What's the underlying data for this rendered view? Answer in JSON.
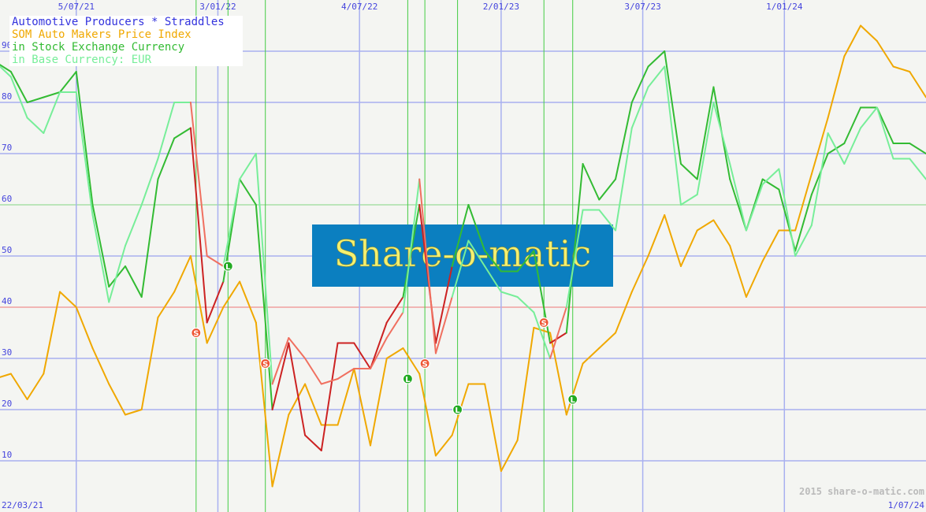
{
  "chart_data": {
    "type": "line",
    "title": "Automotive Producers * Straddles",
    "legend": [
      {
        "text": "Automotive Producers * Straddles",
        "color": "#3333dd"
      },
      {
        "text": "SOM Auto Makers Price Index",
        "color": "#f0a800"
      },
      {
        "text": "in Stock Exchange Currency",
        "color": "#33bb33"
      },
      {
        "text": "in Base Currency: EUR",
        "color": "#77ee99"
      }
    ],
    "legend_placement": "top-left",
    "xlim": [
      "2021-03-29",
      "2024-07-01"
    ],
    "ylim": [
      0,
      100
    ],
    "y_ticks": [
      10,
      20,
      30,
      40,
      50,
      60,
      70,
      80,
      90
    ],
    "x_ticks": [
      {
        "date": "2021-07-05",
        "label": "5/07/21"
      },
      {
        "date": "2022-01-03",
        "label": "3/01/22"
      },
      {
        "date": "2022-07-04",
        "label": "4/07/22"
      },
      {
        "date": "2023-01-02",
        "label": "2/01/23"
      },
      {
        "date": "2023-07-03",
        "label": "3/07/23"
      },
      {
        "date": "2024-01-01",
        "label": "1/01/24"
      }
    ],
    "start_label": "22/03/21",
    "end_label": "1/07/24",
    "grid": true,
    "reference_lines": [
      {
        "y": 40,
        "color": "#f0a0a0"
      },
      {
        "y": 60,
        "color": "#a8e0a8"
      }
    ],
    "x": [
      "2021-03-22",
      "2021-04-12",
      "2021-05-03",
      "2021-05-24",
      "2021-06-14",
      "2021-07-05",
      "2021-07-26",
      "2021-08-16",
      "2021-09-06",
      "2021-09-27",
      "2021-10-18",
      "2021-11-08",
      "2021-11-29",
      "2021-12-20",
      "2022-01-10",
      "2022-01-31",
      "2022-02-21",
      "2022-03-14",
      "2022-04-04",
      "2022-04-25",
      "2022-05-16",
      "2022-06-06",
      "2022-06-27",
      "2022-07-18",
      "2022-08-08",
      "2022-08-29",
      "2022-09-19",
      "2022-10-10",
      "2022-10-31",
      "2022-11-21",
      "2022-12-12",
      "2023-01-02",
      "2023-01-23",
      "2023-02-13",
      "2023-03-06",
      "2023-03-27",
      "2023-04-17",
      "2023-05-08",
      "2023-05-29",
      "2023-06-19",
      "2023-07-10",
      "2023-07-31",
      "2023-08-21",
      "2023-09-11",
      "2023-10-02",
      "2023-10-23",
      "2023-11-13",
      "2023-12-04",
      "2023-12-25",
      "2024-01-15",
      "2024-02-05",
      "2024-02-26",
      "2024-03-18",
      "2024-04-08",
      "2024-04-29",
      "2024-05-20",
      "2024-06-10",
      "2024-07-01"
    ],
    "series": [
      {
        "name": "SOM Auto Makers Price Index",
        "color": "#f0a800",
        "values": [
          26,
          27,
          22,
          27,
          43,
          40,
          32,
          25,
          19,
          20,
          38,
          43,
          50,
          33,
          40,
          45,
          37,
          5,
          19,
          25,
          17,
          17,
          28,
          13,
          30,
          32,
          27,
          11,
          15,
          25,
          25,
          8,
          14,
          36,
          35,
          19,
          29,
          32,
          35,
          43,
          50,
          58,
          48,
          55,
          57,
          52,
          42,
          49,
          55,
          55,
          66,
          77,
          89,
          95,
          92,
          87,
          86,
          81
        ]
      },
      {
        "name": "in Stock Exchange Currency",
        "color": "#33bb33",
        "short_color": "#cc2222",
        "values": [
          88,
          86,
          80,
          81,
          82,
          86,
          60,
          44,
          48,
          42,
          65,
          73,
          75,
          37,
          45,
          65,
          60,
          20,
          33,
          15,
          12,
          33,
          33,
          28,
          37,
          42,
          60,
          33,
          48,
          60,
          51,
          47,
          47,
          51,
          33,
          35,
          68,
          61,
          65,
          80,
          87,
          90,
          68,
          65,
          83,
          65,
          55,
          65,
          63,
          51,
          62,
          70,
          72,
          79,
          79,
          72,
          72,
          70
        ]
      },
      {
        "name": "in Base Currency: EUR",
        "color": "#77ee99",
        "short_color": "#f07060",
        "values": [
          88,
          85,
          77,
          74,
          82,
          82,
          58,
          41,
          52,
          60,
          69,
          80,
          80,
          50,
          48,
          65,
          70,
          25,
          34,
          30,
          25,
          26,
          28,
          28,
          34,
          39,
          65,
          31,
          42,
          53,
          48,
          43,
          42,
          39,
          30,
          40,
          59,
          59,
          55,
          75,
          83,
          87,
          60,
          62,
          80,
          68,
          55,
          64,
          67,
          50,
          56,
          74,
          68,
          75,
          79,
          69,
          69,
          65
        ]
      }
    ],
    "signals": [
      {
        "date": "2021-12-06",
        "type": "S",
        "value": 35
      },
      {
        "date": "2022-01-16",
        "type": "L",
        "value": 48
      },
      {
        "date": "2022-03-05",
        "type": "S",
        "value": 29
      },
      {
        "date": "2022-09-04",
        "type": "L",
        "value": 26
      },
      {
        "date": "2022-09-26",
        "type": "S",
        "value": 29
      },
      {
        "date": "2022-11-07",
        "type": "L",
        "value": 20
      },
      {
        "date": "2023-02-26",
        "type": "S",
        "value": 37
      },
      {
        "date": "2023-04-04",
        "type": "L",
        "value": 22
      }
    ],
    "signal_colors": {
      "S": "#ee5533",
      "L": "#22aa22"
    },
    "watermark": "Share-o-matic",
    "copyright": "2015 share-o-matic.com"
  }
}
